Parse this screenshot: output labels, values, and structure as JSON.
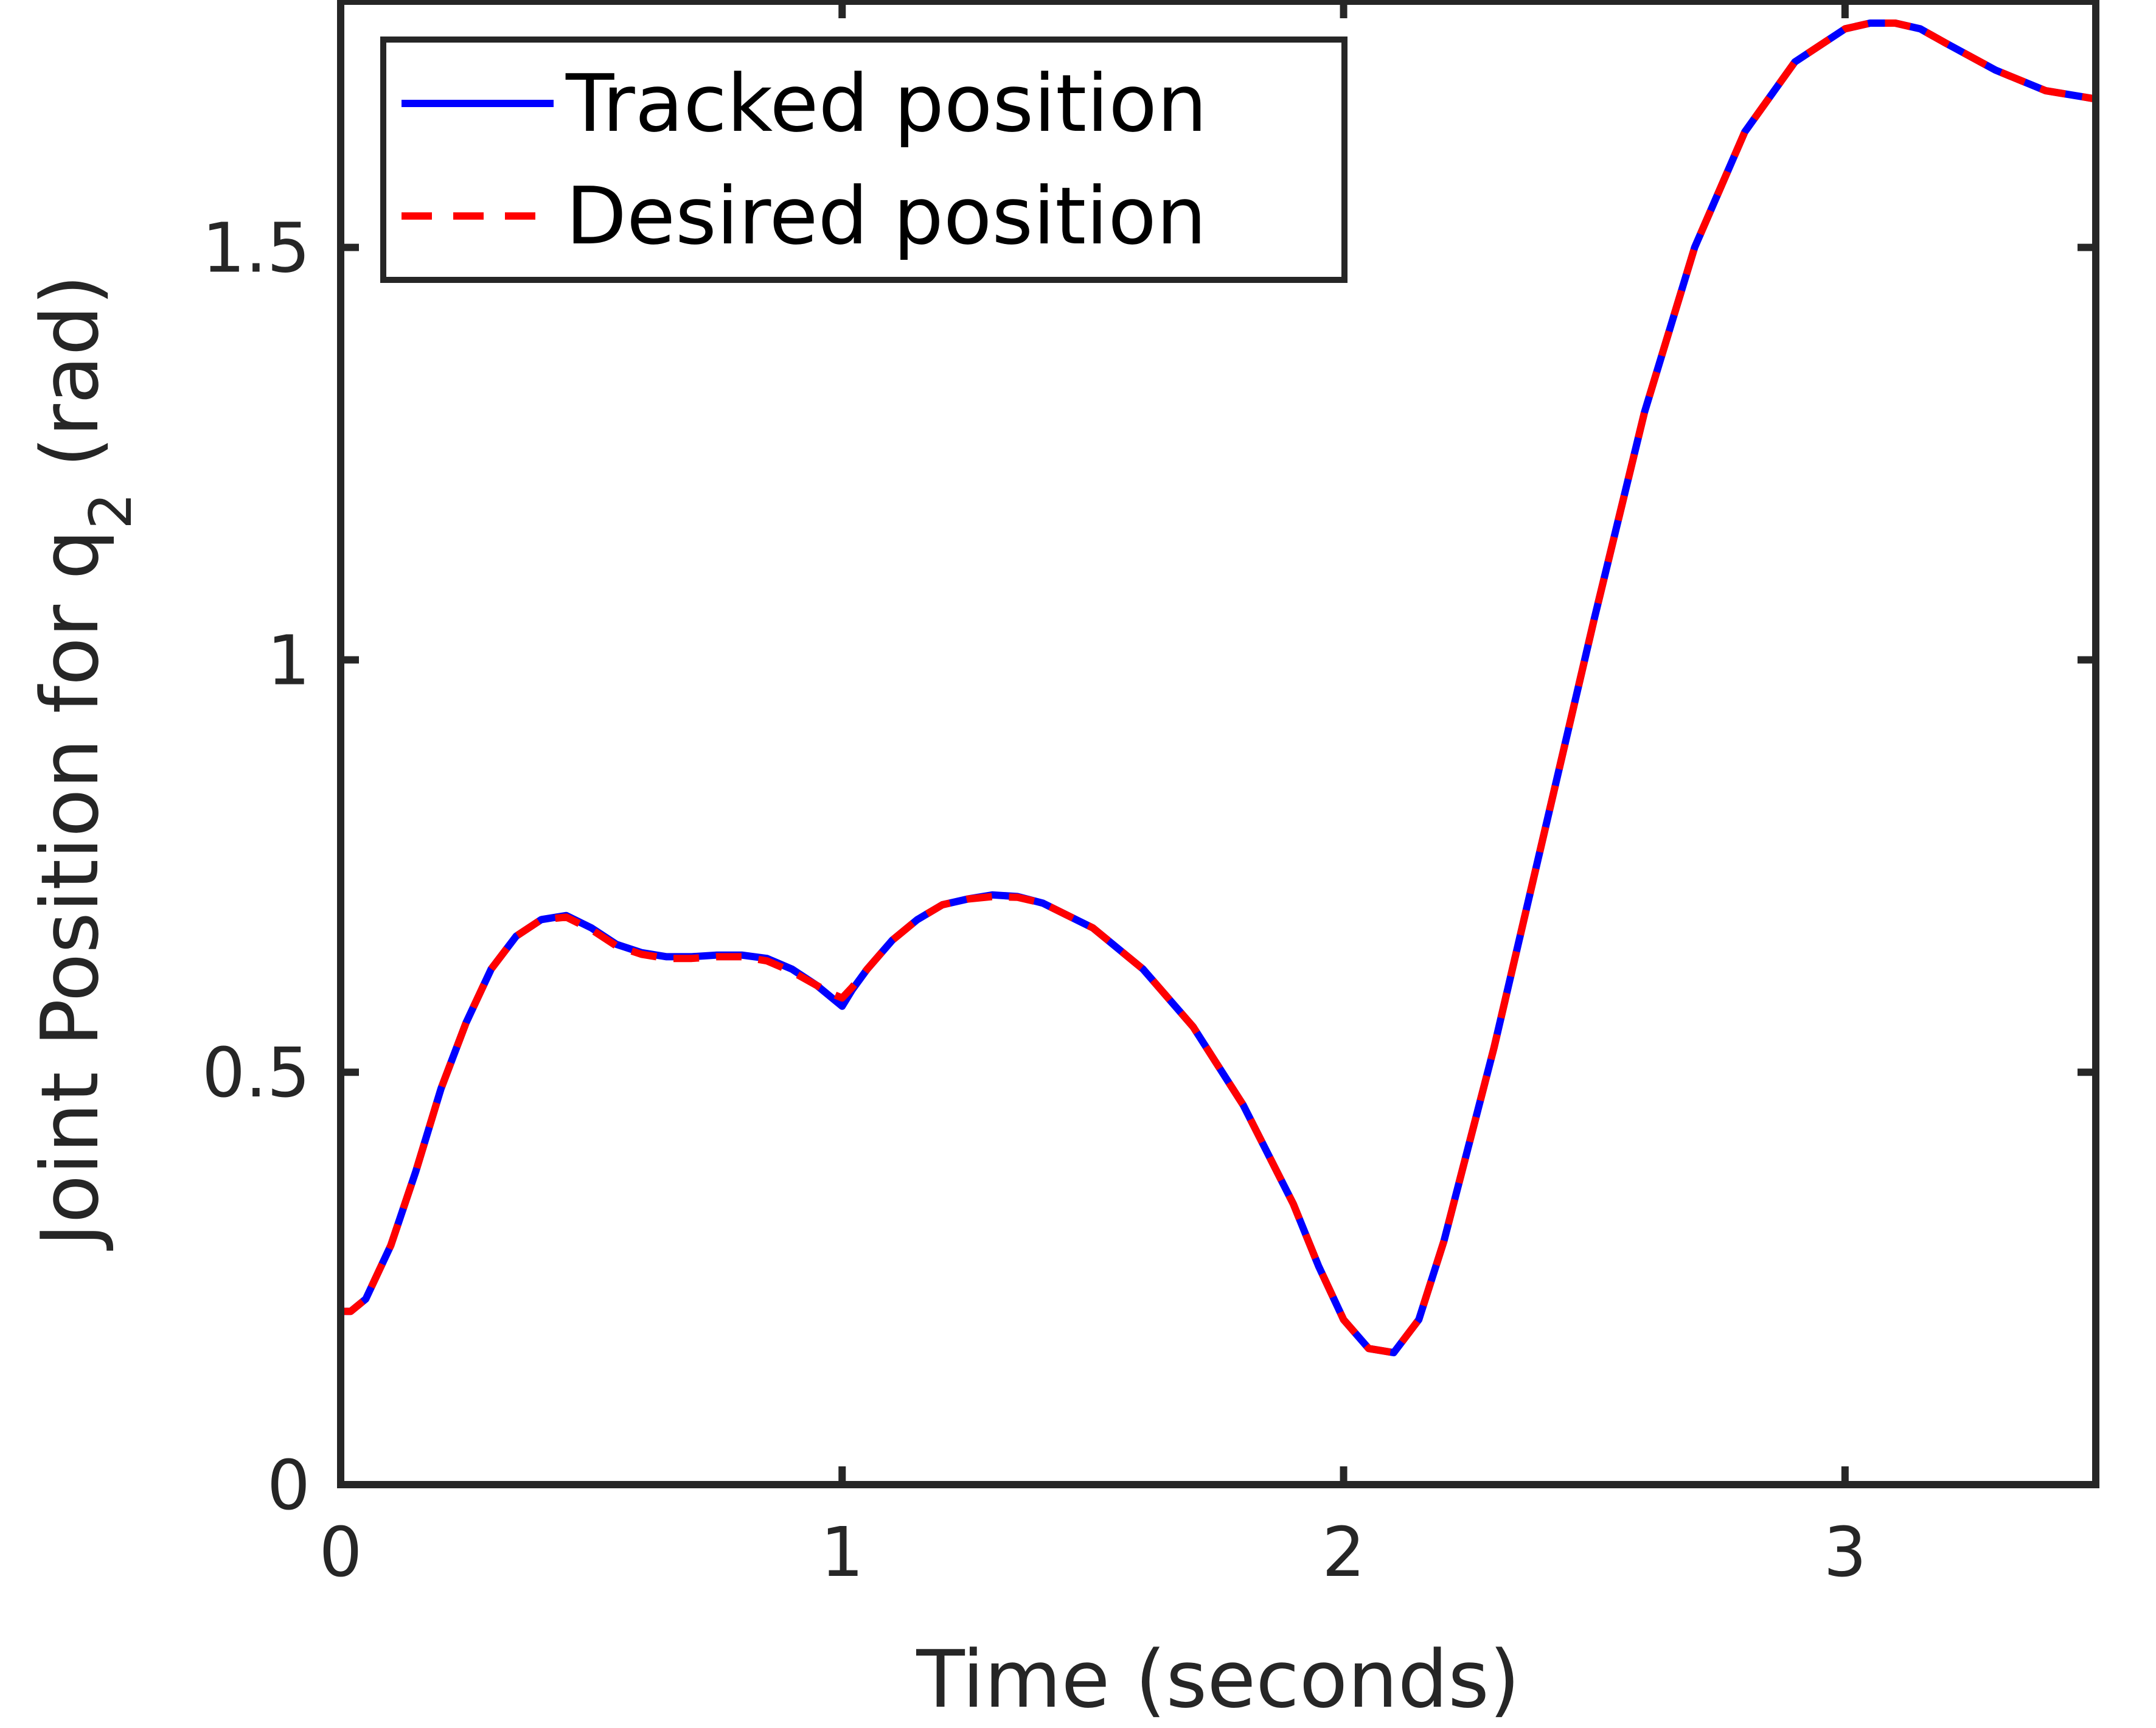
{
  "chart_data": {
    "type": "line",
    "title": "",
    "xlabel": "Time (seconds)",
    "ylabel": {
      "prefix": "Joint Position for q",
      "subscript": "2",
      "suffix": " (rad)"
    },
    "xlim": [
      0,
      3.5
    ],
    "ylim": [
      0,
      1.8
    ],
    "xticks": [
      0,
      1,
      2,
      3
    ],
    "xtick_labels": [
      "0",
      "1",
      "2",
      "3"
    ],
    "yticks": [
      0,
      0.5,
      1,
      1.5
    ],
    "ytick_labels": [
      "0",
      "0.5",
      "1",
      "1.5"
    ],
    "grid": false,
    "legend_position": "top-left",
    "colors": {
      "tracked": "#0000ff",
      "desired": "#ff0000",
      "axes": "#262626"
    },
    "series": [
      {
        "name": "Tracked position",
        "style": "solid",
        "color": "#0000ff",
        "x": [
          0,
          0.02,
          0.05,
          0.1,
          0.15,
          0.2,
          0.25,
          0.3,
          0.35,
          0.4,
          0.45,
          0.5,
          0.55,
          0.6,
          0.65,
          0.7,
          0.75,
          0.8,
          0.85,
          0.9,
          0.95,
          0.98,
          1.0,
          1.02,
          1.05,
          1.1,
          1.15,
          1.2,
          1.25,
          1.3,
          1.35,
          1.4,
          1.5,
          1.6,
          1.7,
          1.8,
          1.9,
          1.95,
          2.0,
          2.05,
          2.1,
          2.15,
          2.2,
          2.3,
          2.4,
          2.5,
          2.6,
          2.7,
          2.8,
          2.9,
          3.0,
          3.05,
          3.1,
          3.15,
          3.2,
          3.3,
          3.4,
          3.5
        ],
        "y": [
          0.21,
          0.21,
          0.225,
          0.29,
          0.38,
          0.48,
          0.56,
          0.625,
          0.665,
          0.685,
          0.69,
          0.675,
          0.655,
          0.645,
          0.64,
          0.64,
          0.642,
          0.642,
          0.638,
          0.625,
          0.605,
          0.59,
          0.58,
          0.6,
          0.625,
          0.66,
          0.685,
          0.703,
          0.71,
          0.715,
          0.713,
          0.705,
          0.675,
          0.625,
          0.555,
          0.46,
          0.34,
          0.265,
          0.2,
          0.165,
          0.16,
          0.2,
          0.295,
          0.53,
          0.79,
          1.05,
          1.3,
          1.5,
          1.64,
          1.725,
          1.765,
          1.772,
          1.772,
          1.765,
          1.748,
          1.715,
          1.69,
          1.68
        ]
      },
      {
        "name": "Desired position",
        "style": "dashed",
        "color": "#ff0000",
        "x": [
          0,
          0.02,
          0.05,
          0.1,
          0.15,
          0.2,
          0.25,
          0.3,
          0.35,
          0.4,
          0.45,
          0.5,
          0.55,
          0.6,
          0.65,
          0.7,
          0.75,
          0.8,
          0.85,
          0.9,
          0.95,
          0.98,
          1.0,
          1.02,
          1.05,
          1.1,
          1.15,
          1.2,
          1.25,
          1.3,
          1.35,
          1.4,
          1.5,
          1.6,
          1.7,
          1.8,
          1.9,
          1.95,
          2.0,
          2.05,
          2.1,
          2.15,
          2.2,
          2.3,
          2.4,
          2.5,
          2.6,
          2.7,
          2.8,
          2.9,
          3.0,
          3.05,
          3.1,
          3.15,
          3.2,
          3.3,
          3.4,
          3.5
        ],
        "y": [
          0.21,
          0.21,
          0.225,
          0.29,
          0.38,
          0.48,
          0.56,
          0.625,
          0.665,
          0.685,
          0.688,
          0.673,
          0.653,
          0.643,
          0.638,
          0.638,
          0.64,
          0.64,
          0.635,
          0.622,
          0.605,
          0.595,
          0.59,
          0.603,
          0.625,
          0.66,
          0.685,
          0.703,
          0.71,
          0.713,
          0.712,
          0.705,
          0.675,
          0.625,
          0.555,
          0.46,
          0.34,
          0.265,
          0.2,
          0.165,
          0.16,
          0.2,
          0.295,
          0.53,
          0.79,
          1.05,
          1.3,
          1.5,
          1.64,
          1.725,
          1.765,
          1.772,
          1.772,
          1.765,
          1.748,
          1.715,
          1.69,
          1.68
        ]
      }
    ]
  }
}
